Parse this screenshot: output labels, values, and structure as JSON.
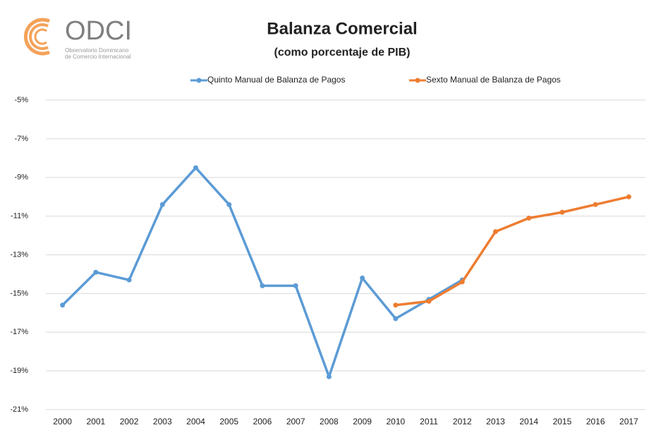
{
  "chart_data": {
    "type": "line",
    "logo": {
      "name": "ODCI",
      "subtitle_lines": [
        "Observatorio Dominicano",
        "de Comercio Internacional"
      ]
    },
    "title": "Balanza Comercial",
    "subtitle": "(como porcentaje de PIB)",
    "categories": [
      "2000",
      "2001",
      "2002",
      "2003",
      "2004",
      "2005",
      "2006",
      "2007",
      "2008",
      "2009",
      "2010",
      "2011",
      "2012",
      "2013",
      "2014",
      "2015",
      "2016",
      "2017"
    ],
    "series": [
      {
        "name": "Quinto Manual de Balanza de Pagos",
        "color": "#5b9bd5",
        "values": [
          -15.6,
          -13.9,
          -14.3,
          -10.4,
          -8.5,
          -10.4,
          -14.6,
          -14.6,
          -19.3,
          -14.2,
          -16.3,
          -15.3,
          -14.3,
          null,
          null,
          null,
          null,
          null
        ]
      },
      {
        "name": "Sexto Manual de Balanza de Pagos",
        "color": "#ed7d31",
        "values": [
          null,
          null,
          null,
          null,
          null,
          null,
          null,
          null,
          null,
          null,
          -15.6,
          -15.4,
          -14.4,
          -11.8,
          -11.1,
          -10.8,
          -10.4,
          -10.0
        ]
      }
    ],
    "ylim": [
      -21,
      -5
    ],
    "yticks": [
      {
        "value": -5,
        "label": "-5%"
      },
      {
        "value": -7,
        "label": "-7%"
      },
      {
        "value": -9,
        "label": "-9%"
      },
      {
        "value": -11,
        "label": "-11%"
      },
      {
        "value": -13,
        "label": "-13%"
      },
      {
        "value": -15,
        "label": "-15%"
      },
      {
        "value": -17,
        "label": "-17%"
      },
      {
        "value": -19,
        "label": "-19%"
      },
      {
        "value": -21,
        "label": "-21%"
      }
    ],
    "grid": true,
    "legend": "top"
  }
}
